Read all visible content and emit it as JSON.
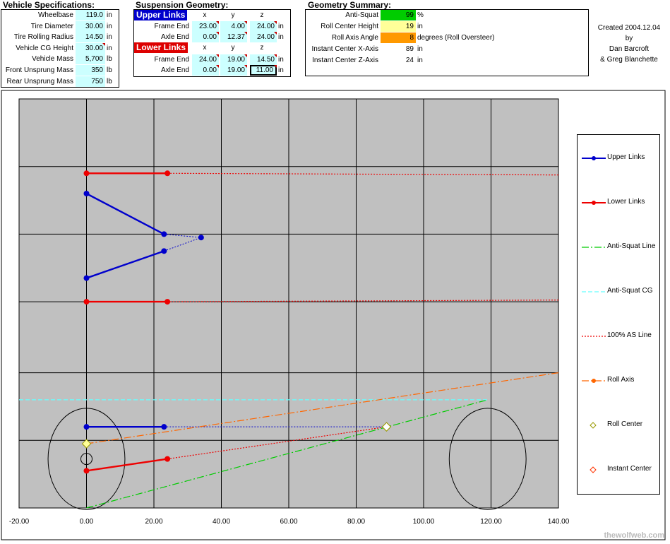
{
  "vehicle_specs": {
    "title": "Vehicle Specifications:",
    "rows": [
      {
        "label": "Wheelbase",
        "value": "119.0",
        "unit": "in"
      },
      {
        "label": "Tire Diameter",
        "value": "30.00",
        "unit": "in"
      },
      {
        "label": "Tire Rolling Radius",
        "value": "14.50",
        "unit": "in"
      },
      {
        "label": "Vehicle CG Height",
        "value": "30.00",
        "unit": "in"
      },
      {
        "label": "Vehicle Mass",
        "value": "5,700",
        "unit": "lb"
      },
      {
        "label": "Front Unsprung Mass",
        "value": "350",
        "unit": "lb"
      },
      {
        "label": "Rear Unsprung Mass",
        "value": "750",
        "unit": "lb"
      }
    ]
  },
  "suspension": {
    "title": "Suspension Geometry:",
    "upper": {
      "header": "Upper Links",
      "cols": [
        "x",
        "y",
        "z"
      ],
      "rows": [
        {
          "label": "Frame End",
          "x": "23.00",
          "y": "4.00",
          "z": "24.00",
          "unit": "in"
        },
        {
          "label": "Axle End",
          "x": "0.00",
          "y": "12.37",
          "z": "24.00",
          "unit": "in"
        }
      ]
    },
    "lower": {
      "header": "Lower Links",
      "cols": [
        "x",
        "y",
        "z"
      ],
      "rows": [
        {
          "label": "Frame End",
          "x": "24.00",
          "y": "19.00",
          "z": "14.50",
          "unit": "in"
        },
        {
          "label": "Axle End",
          "x": "0.00",
          "y": "19.00",
          "z": "11.00",
          "unit": "in"
        }
      ]
    }
  },
  "summary": {
    "title": "Geometry Summary:",
    "rows": [
      {
        "label": "Anti-Squat",
        "value": "99",
        "unit": "%",
        "color": "#00cc00"
      },
      {
        "label": "Roll Center Height",
        "value": "19",
        "unit": "in",
        "color": "#ffff99"
      },
      {
        "label": "Roll Axis Angle",
        "value": "8",
        "unit": "degrees (Roll Oversteer)",
        "color": "#ff9900"
      },
      {
        "label": "Instant Center X-Axis",
        "value": "89",
        "unit": "in",
        "color": ""
      },
      {
        "label": "Instant Center Z-Axis",
        "value": "24",
        "unit": "in",
        "color": ""
      }
    ]
  },
  "credits": {
    "line1": "Created 2004.12.04",
    "line2": "by",
    "line3": "Dan Barcroft",
    "line4": "& Greg Blanchette"
  },
  "watermark": "thewolfweb.com",
  "chart_data": {
    "type": "line",
    "xlim": [
      -20,
      140
    ],
    "x_ticks": [
      "-20.00",
      "0.00",
      "20.00",
      "40.00",
      "60.00",
      "80.00",
      "100.00",
      "120.00",
      "140.00"
    ],
    "grid": true,
    "background": "#c0c0c0",
    "legend_position": "right",
    "series": [
      {
        "name": "Upper Links",
        "color": "#0000cc",
        "style": "solid-marker",
        "segments": [
          [
            [
              0,
              93
            ],
            [
              23,
              81
            ]
          ],
          [
            [
              0,
              68
            ],
            [
              23,
              76
            ]
          ],
          [
            [
              0,
              24
            ],
            [
              23,
              24
            ]
          ]
        ]
      },
      {
        "name": "Lower Links",
        "color": "#ee0000",
        "style": "solid-marker",
        "segments": [
          [
            [
              0,
              99
            ],
            [
              24,
              99
            ]
          ],
          [
            [
              0,
              61
            ],
            [
              24,
              61
            ]
          ],
          [
            [
              0,
              11
            ],
            [
              24,
              14.5
            ]
          ]
        ]
      },
      {
        "name": "Anti-Squat Line",
        "color": "#00cc00",
        "style": "dash-dot",
        "segments": [
          [
            [
              0,
              0
            ],
            [
              119,
              32
            ]
          ]
        ]
      },
      {
        "name": "Anti-Squat CG",
        "color": "#66ffff",
        "style": "dash",
        "segments": [
          [
            [
              -20,
              32
            ],
            [
              119,
              32
            ]
          ]
        ]
      },
      {
        "name": "100% AS Line",
        "color": "#ee0000",
        "style": "dotted",
        "segments": [
          [
            [
              24,
              99
            ],
            [
              140,
              98.5
            ]
          ],
          [
            [
              24,
              61
            ],
            [
              140,
              61.5
            ]
          ],
          [
            [
              24,
              14.5
            ],
            [
              89,
              24
            ]
          ]
        ]
      },
      {
        "name": "Roll Axis",
        "color": "#ff6600",
        "style": "dash-dot-marker",
        "segments": [
          [
            [
              0,
              19
            ],
            [
              140,
              40
            ]
          ]
        ]
      },
      {
        "name": "Roll Center",
        "color": "#999900",
        "style": "diamond",
        "points": [
          [
            0,
            19
          ]
        ]
      },
      {
        "name": "Instant Center",
        "color": "#ff3300",
        "style": "diamond",
        "points": [
          [
            89,
            24
          ]
        ]
      }
    ],
    "extra_dotted_blue": [
      [
        [
          23,
          81
        ],
        [
          34,
          80
        ]
      ],
      [
        [
          23,
          76
        ],
        [
          34,
          80
        ]
      ],
      [
        [
          23,
          24
        ],
        [
          89,
          24
        ]
      ]
    ],
    "wheels": [
      {
        "cx": 0,
        "cz": 14.5,
        "r": 15
      },
      {
        "cx": 119,
        "cz": 14.5,
        "r": 15
      }
    ],
    "axle_marker": {
      "cx": 0,
      "cz": 14.5,
      "r": 1.8
    },
    "z_range": [
      0,
      121
    ],
    "z_grid": [
      0,
      20,
      40,
      61,
      81,
      101,
      121
    ]
  }
}
